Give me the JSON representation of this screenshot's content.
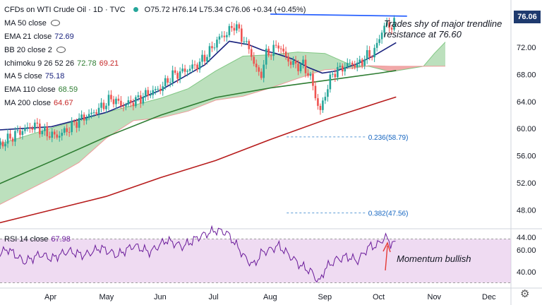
{
  "header": {
    "title": "CFDs on WTI Crude Oil · 1D · TVC",
    "open": "O75.72",
    "high": "H76.14",
    "low": "L75.34",
    "close": "C76.06",
    "change": "+0.34 (+0.45%)"
  },
  "indicators": [
    {
      "label": "MA 50 close",
      "value": "",
      "color": "#131722",
      "hidden": true
    },
    {
      "label": "EMA 21 close",
      "value": "72.69",
      "color": "#1a237e"
    },
    {
      "label": "BB 20 close 2",
      "value": "",
      "color": "#131722",
      "hidden": true
    },
    {
      "label": "Ichimoku 9 26 52 26",
      "values": [
        "72.78",
        "69.21"
      ],
      "colors": [
        "#2e7d32",
        "#c62828"
      ]
    },
    {
      "label": "MA 5 close",
      "value": "75.18",
      "color": "#1a237e"
    },
    {
      "label": "EMA 110 close",
      "value": "68.59",
      "color": "#2e7d32"
    },
    {
      "label": "MA 200 close",
      "value": "64.67",
      "color": "#c62828"
    }
  ],
  "price_tag": "76.06",
  "rsi": {
    "label": "RSI 14 close",
    "value": "67.98"
  },
  "annotations": {
    "trendline": "Trades shy of major trendline resistance at 76.60",
    "trendline_line1": "Trades shy of major trendline",
    "trendline_line2": "resistance at 76.60",
    "rsi": "Momentum bullish"
  },
  "colors": {
    "up": "#26a69a",
    "down": "#ef5350",
    "ema21": "#1a237e",
    "ema110": "#2e7d32",
    "ma200": "#b71c1c",
    "trendline": "#2962ff",
    "kumo_bull": "#a5d6a7",
    "kumo_bear": "#ef9a9a",
    "rsi": "#6a1b9a",
    "rsi_band": "#e1bee7",
    "price_tag_bg": "#1e3a6e"
  },
  "chart_data": [
    {
      "type": "candlestick",
      "title": "CFDs on WTI Crude Oil · 1D · TVC",
      "x_months": [
        "Apr",
        "May",
        "Jun",
        "Jul",
        "Aug",
        "Sep",
        "Oct",
        "Nov",
        "Dec"
      ],
      "y_ticks": [
        "76.06",
        "72.00",
        "68.00",
        "64.00",
        "60.00",
        "56.00",
        "52.00",
        "48.00",
        "44.00"
      ],
      "ylim": [
        42,
        78
      ],
      "close_path": [
        [
          -1.0,
          57.3
        ],
        [
          -0.6,
          59.5
        ],
        [
          -0.3,
          60.5
        ],
        [
          -0.1,
          59.3
        ],
        [
          0.1,
          58.9
        ],
        [
          0.3,
          59.9
        ],
        [
          0.5,
          61.3
        ],
        [
          0.7,
          62.0
        ],
        [
          0.9,
          63.1
        ],
        [
          1.1,
          64.5
        ],
        [
          1.3,
          63.4
        ],
        [
          1.55,
          64.2
        ],
        [
          1.8,
          65.3
        ],
        [
          2.0,
          66.0
        ],
        [
          2.2,
          67.8
        ],
        [
          2.45,
          68.6
        ],
        [
          2.7,
          69.6
        ],
        [
          2.9,
          71.5
        ],
        [
          3.05,
          73.3
        ],
        [
          3.2,
          74.0
        ],
        [
          3.35,
          75.4
        ],
        [
          3.5,
          73.2
        ],
        [
          3.62,
          71.7
        ],
        [
          3.72,
          69.2
        ],
        [
          3.82,
          67.6
        ],
        [
          3.92,
          70.9
        ],
        [
          4.05,
          71.6
        ],
        [
          4.15,
          72.4
        ],
        [
          4.3,
          70.3
        ],
        [
          4.45,
          69.3
        ],
        [
          4.6,
          69.4
        ],
        [
          4.75,
          67.3
        ],
        [
          4.85,
          63.9
        ],
        [
          4.92,
          62.5
        ],
        [
          5.02,
          65.6
        ],
        [
          5.15,
          68.3
        ],
        [
          5.3,
          68.9
        ],
        [
          5.45,
          69.6
        ],
        [
          5.6,
          69.4
        ],
        [
          5.75,
          70.6
        ],
        [
          5.9,
          71.3
        ],
        [
          6.0,
          73.6
        ],
        [
          6.1,
          75.4
        ],
        [
          6.2,
          75.0
        ],
        [
          6.3,
          76.06
        ]
      ],
      "ema21": [
        [
          -1.0,
          59.8
        ],
        [
          0.0,
          60.3
        ],
        [
          1.0,
          62.4
        ],
        [
          2.0,
          65.7
        ],
        [
          2.8,
          69.4
        ],
        [
          3.25,
          72.9
        ],
        [
          3.6,
          72.4
        ],
        [
          3.85,
          71.6
        ],
        [
          4.1,
          71.1
        ],
        [
          4.4,
          70.3
        ],
        [
          4.7,
          69.0
        ],
        [
          4.95,
          68.2
        ],
        [
          5.2,
          68.5
        ],
        [
          5.6,
          69.6
        ],
        [
          5.9,
          70.8
        ],
        [
          6.3,
          72.69
        ]
      ],
      "ema110": [
        [
          -1.0,
          51.7
        ],
        [
          0.0,
          55.2
        ],
        [
          1.0,
          58.8
        ],
        [
          2.0,
          62.0
        ],
        [
          3.0,
          64.6
        ],
        [
          4.0,
          66.0
        ],
        [
          5.0,
          67.1
        ],
        [
          6.0,
          68.2
        ],
        [
          6.3,
          68.59
        ]
      ],
      "ma200": [
        [
          -1.0,
          46.0
        ],
        [
          0.0,
          48.0
        ],
        [
          1.0,
          50.0
        ],
        [
          2.0,
          52.8
        ],
        [
          3.0,
          55.3
        ],
        [
          4.0,
          58.4
        ],
        [
          5.0,
          61.3
        ],
        [
          6.0,
          63.9
        ],
        [
          6.3,
          64.67
        ]
      ],
      "ichimoku_span_a": [
        [
          -1.0,
          57.6
        ],
        [
          0.0,
          60.1
        ],
        [
          1.0,
          62.4
        ],
        [
          2.0,
          64.5
        ],
        [
          2.5,
          65.9
        ],
        [
          3.0,
          68.5
        ],
        [
          3.5,
          70.7
        ],
        [
          4.0,
          70.9
        ],
        [
          4.5,
          71.3
        ],
        [
          5.0,
          71.1
        ],
        [
          5.5,
          69.3
        ],
        [
          5.8,
          69.2
        ],
        [
          6.2,
          68.4
        ],
        [
          6.8,
          69.2
        ],
        [
          7.0,
          71.1
        ],
        [
          7.2,
          72.78
        ]
      ],
      "ichimoku_span_b": [
        [
          -1.0,
          48.6
        ],
        [
          0.0,
          52.7
        ],
        [
          0.5,
          55.0
        ],
        [
          1.0,
          58.6
        ],
        [
          1.5,
          61.2
        ],
        [
          2.0,
          61.6
        ],
        [
          2.5,
          62.6
        ],
        [
          3.0,
          64.2
        ],
        [
          3.5,
          64.8
        ],
        [
          4.0,
          66.0
        ],
        [
          4.5,
          67.4
        ],
        [
          5.0,
          68.7
        ],
        [
          5.5,
          68.9
        ],
        [
          5.8,
          69.3
        ],
        [
          6.2,
          69.2
        ],
        [
          6.8,
          69.2
        ],
        [
          7.2,
          69.21
        ]
      ],
      "trendline": {
        "from": [
          4.0,
          76.9
        ],
        "to": [
          6.5,
          76.6
        ]
      },
      "fibonacci": [
        {
          "label": "0.236(58.79)",
          "level": 58.79
        },
        {
          "label": "0.382(47.56)",
          "level": 47.56
        }
      ]
    },
    {
      "type": "line",
      "title": "RSI 14 close",
      "y_ticks": [
        "60.00",
        "40.00"
      ],
      "ylim": [
        26,
        86
      ],
      "band": [
        30,
        70
      ],
      "values": [
        [
          -1.0,
          55
        ],
        [
          -0.8,
          61
        ],
        [
          -0.5,
          49
        ],
        [
          -0.2,
          56
        ],
        [
          0.0,
          52
        ],
        [
          0.3,
          59
        ],
        [
          0.6,
          55
        ],
        [
          0.9,
          62
        ],
        [
          1.2,
          55
        ],
        [
          1.5,
          64
        ],
        [
          1.8,
          58
        ],
        [
          2.1,
          69
        ],
        [
          2.4,
          63
        ],
        [
          2.7,
          72
        ],
        [
          3.0,
          78
        ],
        [
          3.2,
          76
        ],
        [
          3.4,
          63
        ],
        [
          3.55,
          52
        ],
        [
          3.7,
          46
        ],
        [
          3.85,
          58
        ],
        [
          4.0,
          60
        ],
        [
          4.15,
          64
        ],
        [
          4.35,
          55
        ],
        [
          4.55,
          46
        ],
        [
          4.75,
          40
        ],
        [
          4.9,
          30
        ],
        [
          5.0,
          43
        ],
        [
          5.2,
          51
        ],
        [
          5.4,
          54
        ],
        [
          5.6,
          50
        ],
        [
          5.8,
          63
        ],
        [
          5.95,
          64
        ],
        [
          6.1,
          72
        ],
        [
          6.2,
          66
        ],
        [
          6.3,
          67.98
        ]
      ]
    }
  ]
}
